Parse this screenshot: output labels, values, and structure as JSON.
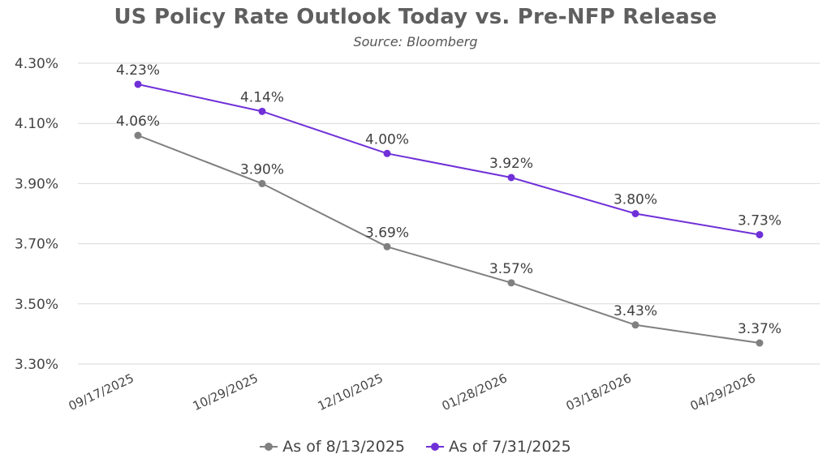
{
  "chart_data": {
    "type": "line",
    "title": "US Policy Rate Outlook Today vs. Pre-NFP Release",
    "subtitle": "Source: Bloomberg",
    "categories": [
      "09/17/2025",
      "10/29/2025",
      "12/10/2025",
      "01/28/2026",
      "03/18/2026",
      "04/29/2026"
    ],
    "series": [
      {
        "name": "As of 8/13/2025",
        "color": "#808080",
        "values": [
          4.06,
          3.9,
          3.69,
          3.57,
          3.43,
          3.37
        ],
        "labels": [
          "4.06%",
          "3.90%",
          "3.69%",
          "3.57%",
          "3.43%",
          "3.37%"
        ]
      },
      {
        "name": "As of 7/31/2025",
        "color": "#7030d8",
        "values": [
          4.23,
          4.14,
          4.0,
          3.92,
          3.8,
          3.73
        ],
        "labels": [
          "4.23%",
          "4.14%",
          "4.00%",
          "3.92%",
          "3.80%",
          "3.73%"
        ]
      }
    ],
    "yticks": [
      3.3,
      3.5,
      3.7,
      3.9,
      4.1,
      4.3
    ],
    "ytick_labels": [
      "3.30%",
      "3.50%",
      "3.70%",
      "3.90%",
      "4.10%",
      "4.30%"
    ],
    "ylim": [
      3.3,
      4.3
    ],
    "grid": true,
    "legend_position": "bottom"
  }
}
